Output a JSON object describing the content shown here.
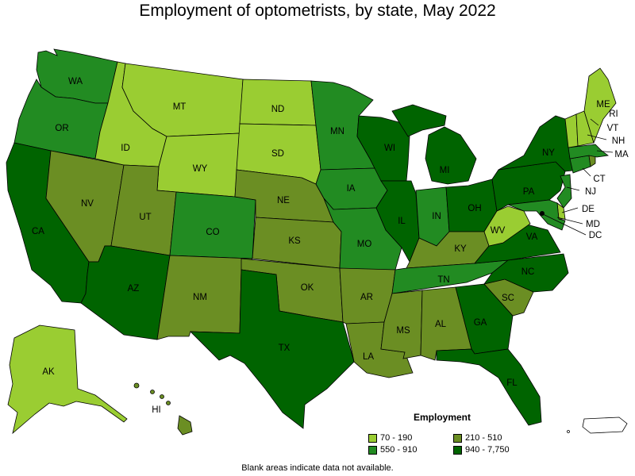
{
  "title": "Employment of optometrists, by state, May 2022",
  "legend": {
    "title": "Employment",
    "items": [
      {
        "label": "70 - 190",
        "color": "#9acd32"
      },
      {
        "label": "550 - 910",
        "color": "#228b22"
      },
      {
        "label": "210 - 510",
        "color": "#6b8e23"
      },
      {
        "label": "940 - 7,750",
        "color": "#006400"
      }
    ]
  },
  "footnote": "Blank areas indicate data not available.",
  "states": {
    "WA": "WA",
    "OR": "OR",
    "CA": "CA",
    "NV": "NV",
    "ID": "ID",
    "MT": "MT",
    "WY": "WY",
    "UT": "UT",
    "AZ": "AZ",
    "CO": "CO",
    "NM": "NM",
    "ND": "ND",
    "SD": "SD",
    "NE": "NE",
    "KS": "KS",
    "OK": "OK",
    "TX": "TX",
    "MN": "MN",
    "IA": "IA",
    "MO": "MO",
    "AR": "AR",
    "LA": "LA",
    "WI": "WI",
    "IL": "IL",
    "MI": "MI",
    "IN": "IN",
    "OH": "OH",
    "KY": "KY",
    "TN": "TN",
    "MS": "MS",
    "AL": "AL",
    "GA": "GA",
    "FL": "FL",
    "SC": "SC",
    "NC": "NC",
    "VA": "VA",
    "WV": "WV",
    "PA": "PA",
    "NY": "NY",
    "ME": "ME",
    "VT": "VT",
    "NH": "NH",
    "MA": "MA",
    "CT": "CT",
    "NJ": "NJ",
    "DE": "DE",
    "MD": "MD",
    "DC": "DC",
    "AK": "AK",
    "HI": "HI",
    "RI": "RI"
  }
}
